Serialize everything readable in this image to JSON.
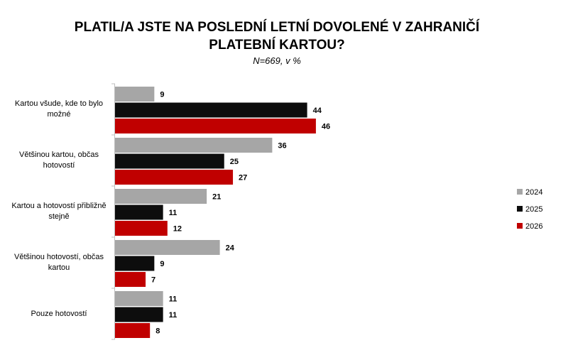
{
  "chart_data": {
    "type": "bar",
    "orientation": "horizontal",
    "title": "PLATIL/A JSTE NA POSLEDNÍ LETNÍ DOVOLENÉ V ZAHRANIČÍ PLATEBNÍ KARTOU?",
    "subtitle": "N=669, v %",
    "categories": [
      "Kartou všude, kde to bylo možné",
      "Většinou kartou, občas hotovostí",
      "Kartou a hotovostí přibližně stejně",
      "Většinou hotovostí, občas kartou",
      "Pouze hotovostí"
    ],
    "series": [
      {
        "name": "2024",
        "color": "#a6a6a6",
        "values": [
          9,
          36,
          21,
          24,
          11
        ]
      },
      {
        "name": "2025",
        "color": "#0d0d0d",
        "values": [
          44,
          25,
          11,
          9,
          11
        ]
      },
      {
        "name": "2026",
        "color": "#c00000",
        "values": [
          46,
          27,
          12,
          7,
          8
        ]
      }
    ],
    "xlim": [
      0,
      50
    ],
    "grid": false,
    "data_labels": true,
    "legend_position": "right"
  }
}
